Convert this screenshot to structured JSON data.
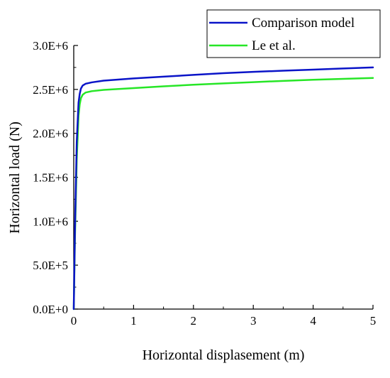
{
  "chart_data": {
    "type": "line",
    "title": "",
    "xlabel": "Horizontal displasement (m)",
    "ylabel": "Horizontal load (N)",
    "xlim": [
      0,
      5
    ],
    "ylim": [
      0,
      3000000
    ],
    "x_ticks": [
      0,
      1,
      2,
      3,
      4,
      5
    ],
    "x_tick_labels": [
      "0",
      "1",
      "2",
      "3",
      "4",
      "5"
    ],
    "y_ticks": [
      0,
      500000,
      1000000,
      1500000,
      2000000,
      2500000,
      3000000
    ],
    "y_tick_labels": [
      "0.0E+0",
      "5.0E+5",
      "1.0E+6",
      "1.5E+6",
      "2.0E+6",
      "2.5E+6",
      "3.0E+6"
    ],
    "grid": false,
    "legend_position": "top-right",
    "series": [
      {
        "name": "Comparison model",
        "color": "#0a14c8",
        "x": [
          0,
          0.02,
          0.05,
          0.08,
          0.1,
          0.12,
          0.15,
          0.2,
          0.3,
          0.5,
          0.7,
          1.0,
          1.5,
          2.0,
          2.5,
          3.0,
          3.5,
          4.0,
          4.5,
          5.0
        ],
        "y": [
          0,
          900000,
          1900000,
          2350000,
          2450000,
          2510000,
          2545000,
          2565000,
          2580000,
          2600000,
          2610000,
          2625000,
          2645000,
          2665000,
          2685000,
          2700000,
          2713000,
          2725000,
          2738000,
          2750000
        ]
      },
      {
        "name": "Le et al.",
        "color": "#26e626",
        "x": [
          0,
          0.02,
          0.05,
          0.08,
          0.1,
          0.12,
          0.15,
          0.2,
          0.3,
          0.5,
          0.7,
          1.0,
          1.5,
          2.0,
          2.5,
          3.0,
          3.5,
          4.0,
          4.5,
          5.0
        ],
        "y": [
          0,
          800000,
          1700000,
          2200000,
          2330000,
          2400000,
          2440000,
          2465000,
          2480000,
          2495000,
          2503000,
          2515000,
          2535000,
          2553000,
          2568000,
          2583000,
          2597000,
          2610000,
          2620000,
          2630000
        ]
      }
    ]
  }
}
